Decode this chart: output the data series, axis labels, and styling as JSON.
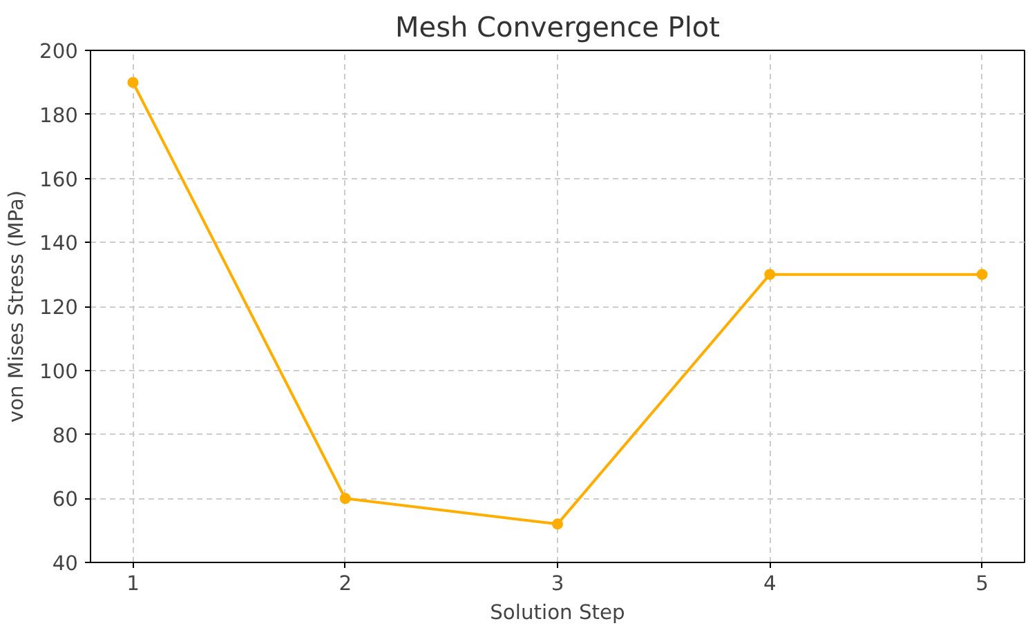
{
  "chart_data": {
    "type": "line",
    "title": "Mesh Convergence Plot",
    "xlabel": "Solution Step",
    "ylabel": "von Mises Stress (MPa)",
    "x": [
      1,
      2,
      3,
      4,
      5
    ],
    "series": [
      {
        "color": "#ffae00",
        "values": [
          190,
          60,
          52,
          130,
          130
        ]
      }
    ],
    "xlim": [
      0.8,
      5.2
    ],
    "ylim": [
      40,
      200
    ],
    "xticks": [
      1,
      2,
      3,
      4,
      5
    ],
    "yticks": [
      40,
      60,
      80,
      100,
      120,
      140,
      160,
      180,
      200
    ],
    "grid": true,
    "marker": "circle",
    "line_style": "solid"
  }
}
